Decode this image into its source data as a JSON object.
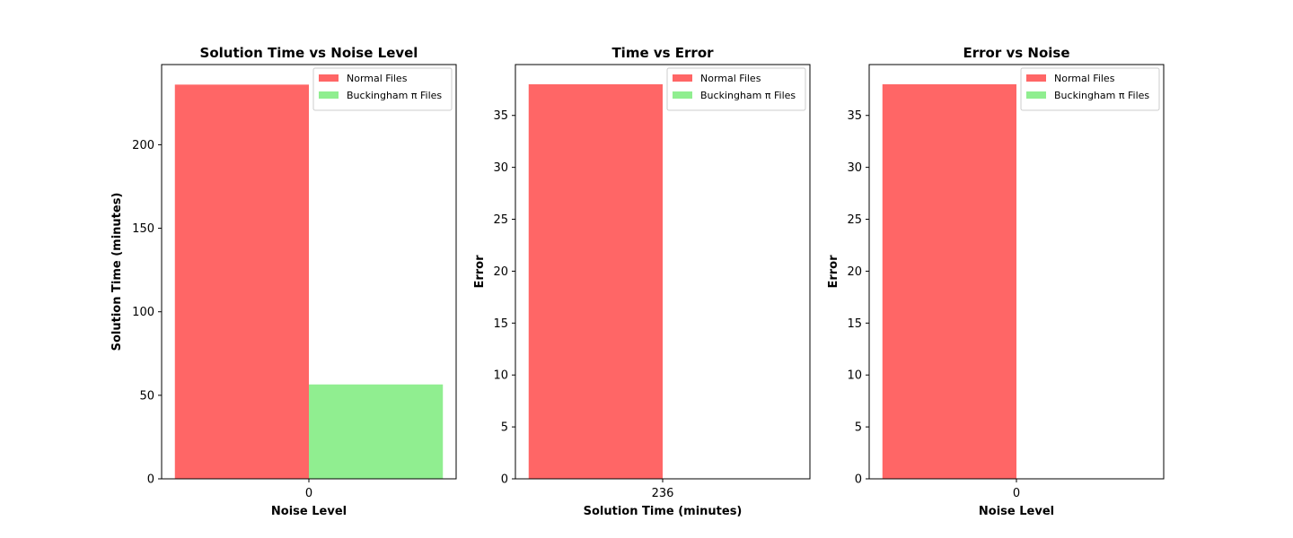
{
  "legend": {
    "normal_label": "Normal Files",
    "buckingham_label": "Buckingham π Files"
  },
  "colors": {
    "normal": "#ff6666",
    "buckingham": "#90ee90"
  },
  "chart_data": [
    {
      "type": "bar",
      "title": "Solution Time vs Noise Level",
      "xlabel": "Noise Level",
      "ylabel": "Solution Time (minutes)",
      "categories": [
        "0"
      ],
      "series": [
        {
          "name": "Normal Files",
          "values": [
            236
          ]
        },
        {
          "name": "Buckingham π Files",
          "values": [
            56.5
          ]
        }
      ],
      "ylim": [
        0,
        248
      ],
      "yticks": [
        0,
        50,
        100,
        150,
        200
      ],
      "legend_position": "upper right"
    },
    {
      "type": "bar",
      "title": "Time vs Error",
      "xlabel": "Solution Time (minutes)",
      "ylabel": "Error",
      "categories": [
        "236"
      ],
      "series": [
        {
          "name": "Normal Files",
          "values": [
            38
          ]
        },
        {
          "name": "Buckingham π Files",
          "values": [
            0
          ]
        }
      ],
      "ylim": [
        0,
        39.9
      ],
      "yticks": [
        0,
        5,
        10,
        15,
        20,
        25,
        30,
        35
      ],
      "legend_position": "upper right"
    },
    {
      "type": "bar",
      "title": "Error vs Noise",
      "xlabel": "Noise Level",
      "ylabel": "Error",
      "categories": [
        "0"
      ],
      "series": [
        {
          "name": "Normal Files",
          "values": [
            38
          ]
        },
        {
          "name": "Buckingham π Files",
          "values": [
            0
          ]
        }
      ],
      "ylim": [
        0,
        39.9
      ],
      "yticks": [
        0,
        5,
        10,
        15,
        20,
        25,
        30,
        35
      ],
      "legend_position": "upper right"
    }
  ]
}
